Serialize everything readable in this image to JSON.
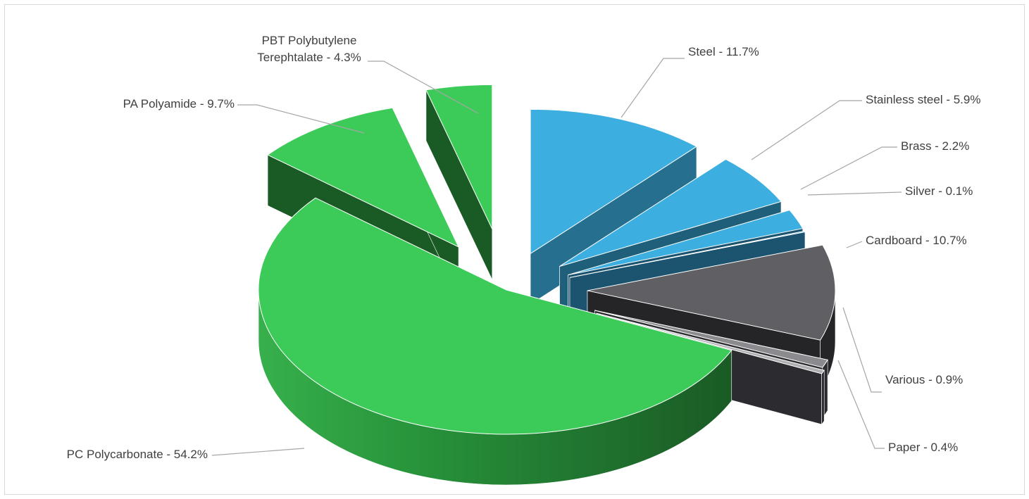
{
  "chart_data": {
    "type": "pie",
    "title": "",
    "slices": [
      {
        "label": "Steel - 11.7%",
        "value": 11.7,
        "color": "#3daee0"
      },
      {
        "label": "Stainless steel - 5.9%",
        "value": 5.9,
        "color": "#3daee0"
      },
      {
        "label": "Brass - 2.2%",
        "value": 2.2,
        "color": "#3daee0"
      },
      {
        "label": "Silver - 0.1%",
        "value": 0.1,
        "color": "#3daee0"
      },
      {
        "label": "Cardboard - 10.7%",
        "value": 10.7,
        "color": "#5f5f64"
      },
      {
        "label": "Various - 0.9%",
        "value": 0.9,
        "color": "#8a8a8f"
      },
      {
        "label": "Paper - 0.4%",
        "value": 0.4,
        "color": "#b0b0b4"
      },
      {
        "label": "PC Polycarbonate - 54.2%",
        "value": 54.2,
        "color": "#3ccb58"
      },
      {
        "label": "PA Polyamide - 9.7%",
        "value": 9.7,
        "color": "#3ccb58"
      },
      {
        "label": "PBT Polybutylene Terephtalate - 4.3%",
        "label_lines": [
          "PBT Polybutylene",
          "Terephtalate - 4.3%"
        ],
        "value": 4.3,
        "color": "#3ccb58"
      }
    ],
    "legend": "none",
    "style": "3d-exploded-pie"
  }
}
